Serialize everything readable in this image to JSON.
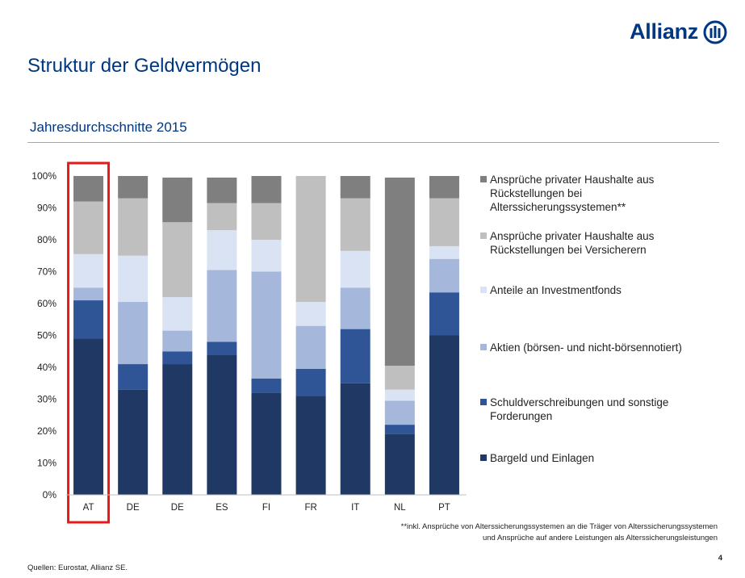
{
  "header": {
    "brand": "Allianz",
    "title": "Struktur der Geldvermögen"
  },
  "subtitle": "Jahresdurchschnitte 2015",
  "colors": {
    "brand": "#003781",
    "highlight_box": "#e8191b"
  },
  "chart_data": {
    "type": "bar",
    "stacked": true,
    "categories": [
      "AT",
      "DE",
      "DE",
      "ES",
      "FI",
      "FR",
      "IT",
      "NL",
      "PT"
    ],
    "y_tick_labels": [
      "0%",
      "10%",
      "20%",
      "30%",
      "40%",
      "50%",
      "60%",
      "70%",
      "80%",
      "90%",
      "100%"
    ],
    "ylim": [
      0,
      100
    ],
    "grid": false,
    "legend_position": "right",
    "highlighted_category": "AT",
    "series": [
      {
        "name": "Bargeld und Einlagen",
        "color": "#1f3864",
        "values": [
          49,
          33,
          41,
          44,
          32,
          31,
          35,
          19,
          50
        ]
      },
      {
        "name": "Schuldverschreibungen und sonstige Forderungen",
        "color": "#2f5597",
        "values": [
          12,
          8,
          4,
          4,
          4.5,
          8.5,
          17,
          3,
          13.5
        ]
      },
      {
        "name": "Aktien (börsen- und nicht-börsennotiert)",
        "color": "#a5b8db",
        "values": [
          4,
          19.5,
          6.5,
          22.5,
          33.5,
          13.5,
          13,
          7.5,
          10.5
        ]
      },
      {
        "name": "Anteile an Investmentfonds",
        "color": "#dae3f3",
        "values": [
          10.5,
          14.5,
          10.5,
          12.5,
          10,
          7.5,
          11.5,
          3.5,
          4
        ]
      },
      {
        "name": "Ansprüche privater Haushalte aus Rückstellungen bei Versicherern",
        "color": "#bfbfbf",
        "values": [
          16.5,
          18,
          23.5,
          8.5,
          11.5,
          39.5,
          16.5,
          7.5,
          15
        ]
      },
      {
        "name": "Ansprüche privater Haushalte aus Rückstellungen bei Alterssicherungssystemen**",
        "color": "#7f7f7f",
        "values": [
          8,
          7,
          14,
          8,
          8.5,
          0,
          7,
          59,
          7
        ]
      }
    ]
  },
  "footnote": {
    "line1": "**inkl. Ansprüche von Alterssicherungssystemen an die Träger von Alterssicherungssystemen",
    "line2": "und Ansprüche auf andere Leistungen als Alterssicherungsleistungen"
  },
  "source": "Quellen: Eurostat, Allianz SE.",
  "page_number": "4"
}
